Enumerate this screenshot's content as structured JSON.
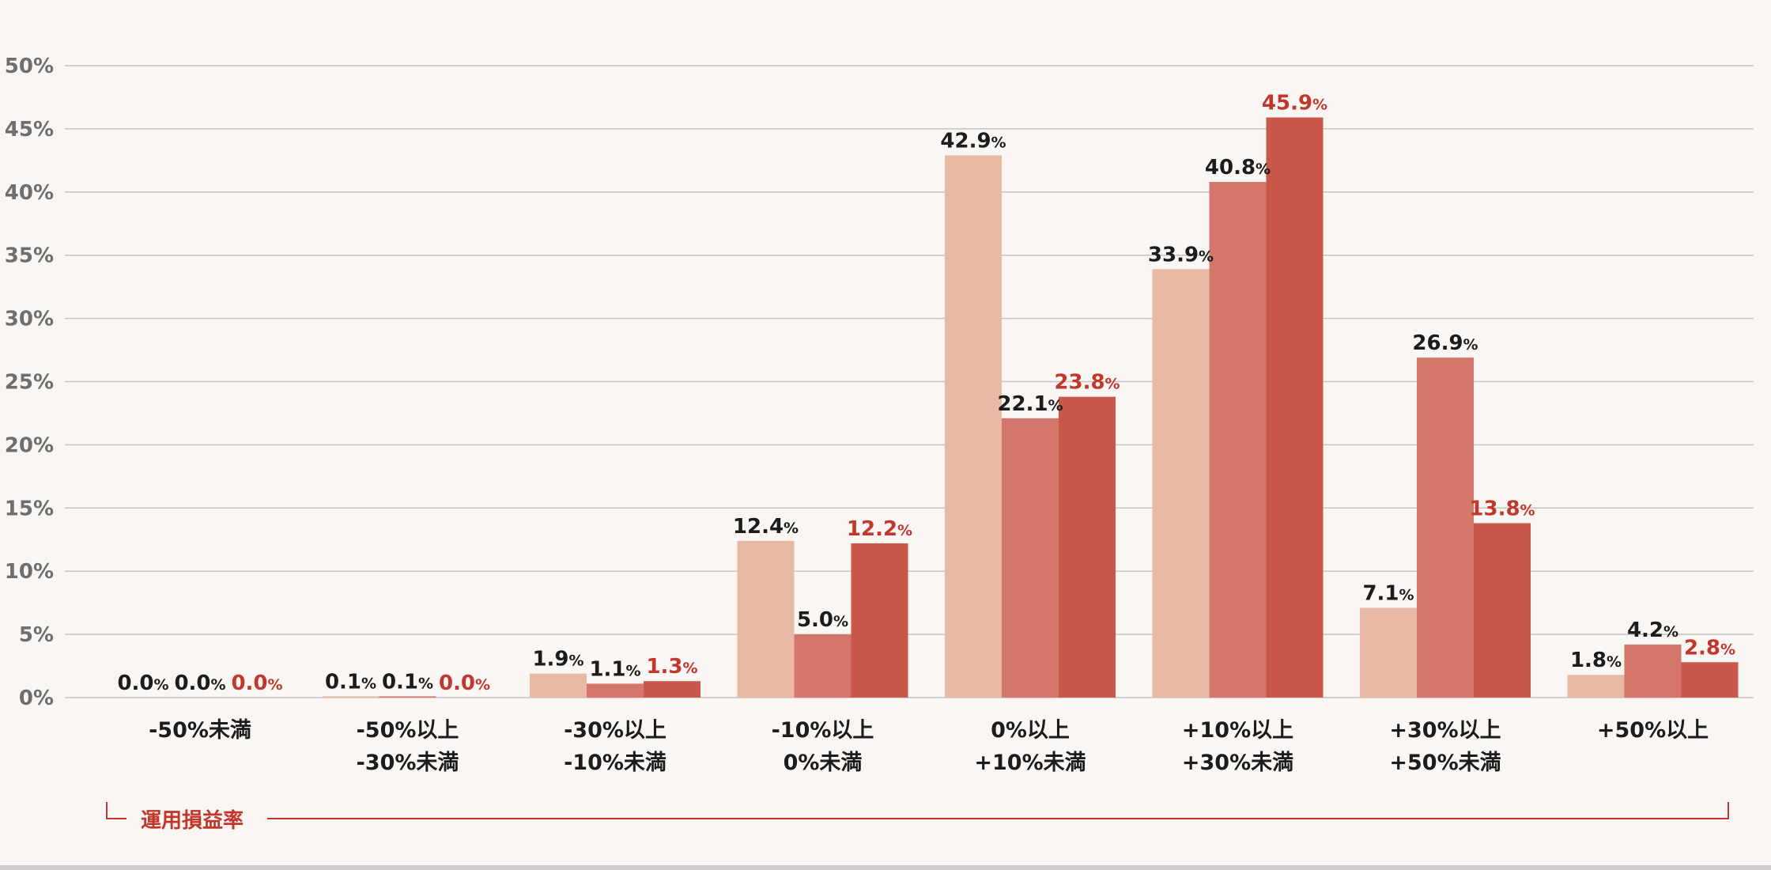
{
  "chart_data": {
    "type": "bar",
    "title": "",
    "xlabel": "運用損益率",
    "ylabel": "",
    "ylim": [
      0,
      50
    ],
    "yticks": [
      "0%",
      "5%",
      "10%",
      "15%",
      "20%",
      "25%",
      "30%",
      "35%",
      "40%",
      "45%",
      "50%"
    ],
    "grid": true,
    "categories": [
      [
        "-50%未満"
      ],
      [
        "-50%以上",
        "-30%未満"
      ],
      [
        "-30%以上",
        "-10%未満"
      ],
      [
        "-10%以上",
        "0%未満"
      ],
      [
        "0%以上",
        "+10%未満"
      ],
      [
        "+10%以上",
        "+30%未満"
      ],
      [
        "+30%以上",
        "+50%未満"
      ],
      [
        "+50%以上"
      ]
    ],
    "series": [
      {
        "values": [
          0.0,
          0.1,
          1.9,
          12.4,
          42.9,
          33.9,
          7.1,
          1.8
        ],
        "labels": [
          "0.0",
          "0.1",
          "1.9",
          "12.4",
          "42.9",
          "33.9",
          "7.1",
          "1.8"
        ]
      },
      {
        "values": [
          0.0,
          0.1,
          1.1,
          5.0,
          22.1,
          40.8,
          26.9,
          4.2
        ],
        "labels": [
          "0.0",
          "0.1",
          "1.1",
          "5.0",
          "22.1",
          "40.8",
          "26.9",
          "4.2"
        ]
      },
      {
        "values": [
          0.0,
          0.0,
          1.3,
          12.2,
          23.8,
          45.9,
          13.8,
          2.8
        ],
        "labels": [
          "0.0",
          "0.0",
          "1.3",
          "12.2",
          "23.8",
          "45.9",
          "13.8",
          "2.8"
        ]
      }
    ],
    "value_suffix": "%",
    "colors": {
      "series": [
        "#e8b9a4",
        "#d4776a",
        "#c9574a"
      ],
      "label_text": [
        "#1c1c1c",
        "#1c1c1c",
        "#c0372d"
      ],
      "grid": "#c4c4c4",
      "bracket": "#c0372d"
    }
  }
}
